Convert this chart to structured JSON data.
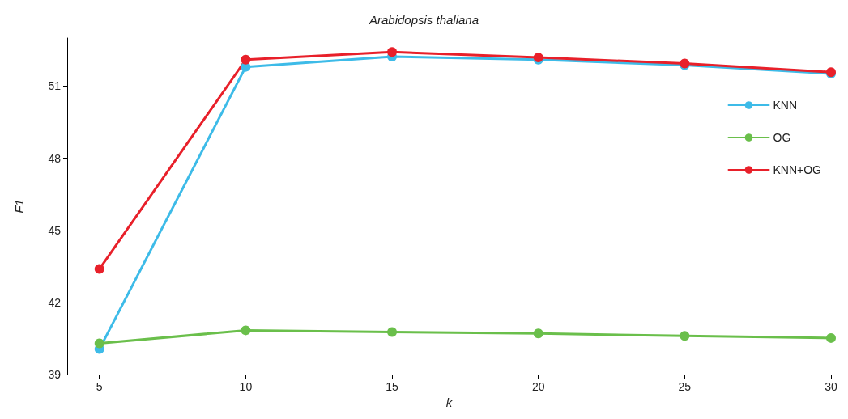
{
  "chart_data": {
    "type": "line",
    "title": "Arabidopsis thaliana",
    "xlabel": "k",
    "ylabel": "F1",
    "x": [
      5,
      10,
      15,
      20,
      25,
      30
    ],
    "xlim": [
      3.9,
      30
    ],
    "xticks": [
      5,
      10,
      15,
      20,
      25,
      30
    ],
    "ylim": [
      39,
      53
    ],
    "yticks": [
      39,
      42,
      45,
      48,
      51
    ],
    "series": [
      {
        "name": "KNN",
        "color": "#3dbbe8",
        "values": [
          40.06,
          51.8,
          52.23,
          52.1,
          51.87,
          51.52
        ]
      },
      {
        "name": "OG",
        "color": "#6abf4b",
        "values": [
          40.3,
          40.84,
          40.77,
          40.71,
          40.61,
          40.52
        ]
      },
      {
        "name": "KNN+OG",
        "color": "#e8202a",
        "values": [
          43.39,
          52.1,
          52.42,
          52.19,
          51.94,
          51.58
        ]
      }
    ],
    "marker": "circle",
    "line_style": "solid",
    "grid": false,
    "legend": "right"
  }
}
